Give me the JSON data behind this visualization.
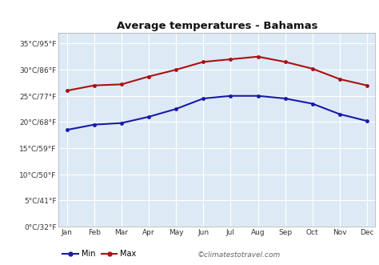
{
  "title": "Average temperatures - Bahamas",
  "months": [
    "Jan",
    "Feb",
    "Mar",
    "Apr",
    "May",
    "Jun",
    "Jul",
    "Aug",
    "Sep",
    "Oct",
    "Nov",
    "Dec"
  ],
  "min_temps": [
    18.5,
    19.5,
    19.8,
    21.0,
    22.5,
    24.5,
    25.0,
    25.0,
    24.5,
    23.5,
    21.5,
    20.2
  ],
  "max_temps": [
    26.0,
    27.0,
    27.2,
    28.7,
    30.0,
    31.5,
    32.0,
    32.5,
    31.5,
    30.2,
    28.2,
    27.0
  ],
  "min_color": "#1a1aaa",
  "max_color": "#aa1111",
  "bg_color": "#ddeaf6",
  "grid_color": "#ffffff",
  "yticks": [
    0,
    5,
    10,
    15,
    20,
    25,
    30,
    35
  ],
  "ytick_labels": [
    "0°C/32°F",
    "5°C/41°F",
    "10°C/50°F",
    "15°C/59°F",
    "20°C/68°F",
    "25°C/77°F",
    "30°C/86°F",
    "35°C/95°F"
  ],
  "ylim": [
    0,
    37
  ],
  "watermark": "©climatestotravel.com",
  "legend_min": "Min",
  "legend_max": "Max",
  "title_fontsize": 9.5,
  "tick_fontsize": 6.5,
  "legend_fontsize": 7.0,
  "watermark_fontsize": 6.5
}
